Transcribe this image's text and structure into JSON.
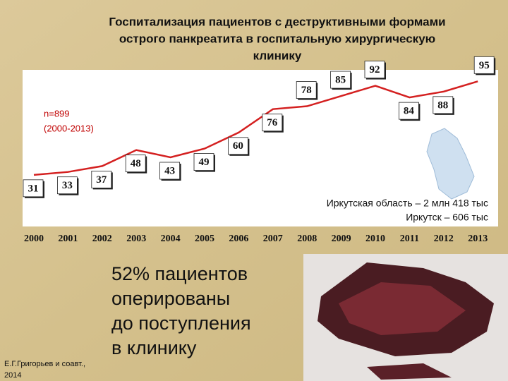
{
  "chart_data": {
    "type": "line",
    "title": [
      "Госпитализация пациентов с деструктивными формами",
      "острого панкреатита в госпитальную хирургическую",
      "клинику"
    ],
    "categories": [
      "2000",
      "2001",
      "2002",
      "2003",
      "2004",
      "2005",
      "2006",
      "2007",
      "2008",
      "2009",
      "2010",
      "2011",
      "2012",
      "2013"
    ],
    "values": [
      31,
      33,
      37,
      48,
      43,
      49,
      60,
      76,
      78,
      85,
      92,
      84,
      88,
      95
    ],
    "color": "#d42020",
    "ylim": [
      0,
      100
    ],
    "annotations": [
      "n=899",
      "(2000-2013)",
      "Иркутская область – 2 млн 418 тыс",
      "Иркутск – 606 тыс"
    ]
  },
  "slide": {
    "note": [
      "52% пациентов",
      "оперированы",
      "до поступления",
      "в клинику"
    ],
    "author": [
      "Е.Г.Григорьев и соавт.,",
      "2014"
    ]
  }
}
